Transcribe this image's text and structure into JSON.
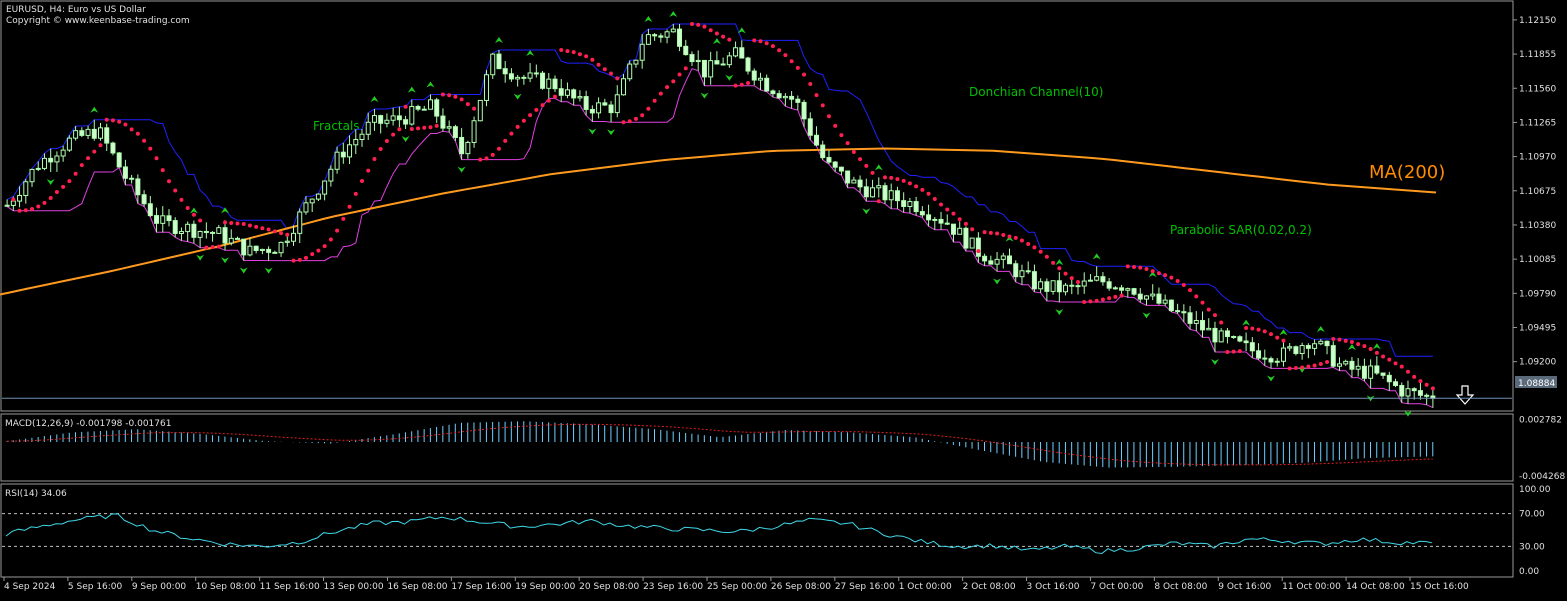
{
  "window": {
    "header_line1": "EURUSD, H4:  Euro vs US Dollar",
    "header_line2": "Copyright © www.keenbase-trading.com"
  },
  "chart_data": [
    {
      "type": "candlestick",
      "symbol": "EURUSD",
      "timeframe": "H4",
      "y_ticks": [
        "1.12150",
        "1.11855",
        "1.11560",
        "1.11265",
        "1.10970",
        "1.10675",
        "1.10380",
        "1.10085",
        "1.09790",
        "1.09495",
        "1.09200"
      ],
      "ylim": [
        1.088,
        1.1227
      ],
      "current_price_label": "1.08884",
      "current_price": 1.08884,
      "x_ticks": [
        "4 Sep 2024",
        "5 Sep 16:00",
        "9 Sep 00:00",
        "10 Sep 08:00",
        "11 Sep 16:00",
        "13 Sep 00:00",
        "16 Sep 08:00",
        "17 Sep 16:00",
        "19 Sep 00:00",
        "20 Sep 08:00",
        "23 Sep 16:00",
        "25 Sep 00:00",
        "26 Sep 08:00",
        "27 Sep 16:00",
        "1 Oct 00:00",
        "2 Oct 08:00",
        "3 Oct 16:00",
        "7 Oct 00:00",
        "8 Oct 08:00",
        "9 Oct 16:00",
        "11 Oct 00:00",
        "14 Oct 08:00",
        "15 Oct 16:00"
      ],
      "close_path": [
        1.1055,
        1.109,
        1.111,
        1.112,
        1.1075,
        1.104,
        1.1035,
        1.103,
        1.1015,
        1.102,
        1.106,
        1.11,
        1.1125,
        1.113,
        1.114,
        1.11,
        1.118,
        1.1165,
        1.116,
        1.114,
        1.114,
        1.12,
        1.1205,
        1.117,
        1.1185,
        1.116,
        1.1145,
        1.109,
        1.1072,
        1.1063,
        1.1055,
        1.104,
        1.1015,
        1.1003,
        1.0985,
        1.0982,
        1.099,
        1.0985,
        1.097,
        1.0955,
        1.094,
        1.093,
        1.0925,
        1.094,
        1.0915,
        1.091,
        1.0895,
        1.0888
      ],
      "ma200_path": [
        1.0978,
        1.0998,
        1.102,
        1.1045,
        1.1065,
        1.1082,
        1.1094,
        1.1102,
        1.1104,
        1.1102,
        1.1095,
        1.1084,
        1.1073,
        1.1066
      ],
      "annotations": [
        "Fractals",
        "Donchian Channel(10)",
        "Parabolic SAR(0.02,0.2)",
        "MA(200)"
      ],
      "arrow": "down"
    },
    {
      "type": "histogram",
      "indicator": "MACD",
      "label": "MACD(12,26,9) -0.001798 -0.001761",
      "y_ticks": [
        "0.002782",
        "-0.004268"
      ],
      "ylim": [
        -0.0045,
        0.003
      ],
      "values_path": [
        0.0001,
        0.0012,
        0.0016,
        0.001,
        0.0001,
        -0.0002,
        0.001,
        0.0024,
        0.0026,
        0.0022,
        0.0016,
        0.0006,
        0.0015,
        0.0012,
        0.0006,
        -0.001,
        -0.0025,
        -0.0032,
        -0.0031,
        -0.0029,
        -0.0026,
        -0.002,
        -0.0018
      ]
    },
    {
      "type": "line",
      "indicator": "RSI",
      "label": "RSI(14) 34.06",
      "y_ticks": [
        "100.00",
        "70.00",
        "30.00",
        "0.00"
      ],
      "ylim": [
        0,
        100
      ],
      "levels": [
        70,
        30
      ],
      "values_path": [
        45,
        55,
        63,
        68,
        50,
        40,
        33,
        30,
        35,
        48,
        58,
        60,
        66,
        60,
        54,
        57,
        61,
        55,
        52,
        50,
        48,
        54,
        62,
        58,
        46,
        36,
        30,
        31,
        25,
        30,
        24,
        28,
        34,
        30,
        39,
        37,
        33,
        39,
        35,
        34
      ]
    }
  ]
}
